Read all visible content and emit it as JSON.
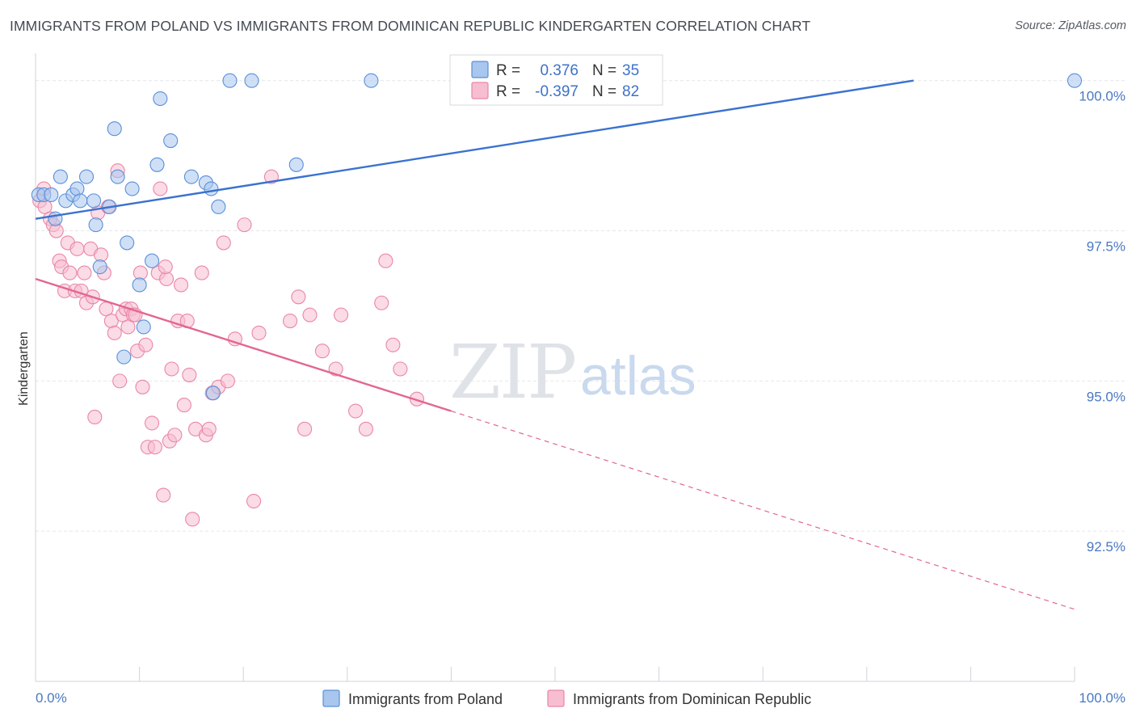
{
  "title": "IMMIGRANTS FROM POLAND VS IMMIGRANTS FROM DOMINICAN REPUBLIC KINDERGARTEN CORRELATION CHART",
  "source": "Source: ZipAtlas.com",
  "watermark": {
    "zip": "ZIP",
    "atlas": "atlas"
  },
  "colors": {
    "poland_fill": "#a8c6ee",
    "poland_stroke": "#5b8fd8",
    "poland_line": "#3a72d0",
    "dominican_fill": "#f7bdd0",
    "dominican_stroke": "#e987a8",
    "dominican_line": "#e2678f",
    "tick_label": "#4a78c2",
    "grid": "#e3e6ea"
  },
  "legend": {
    "r_label": "R =",
    "n_label": "N =",
    "rows": [
      {
        "r": "0.376",
        "n": "35"
      },
      {
        "r": "-0.397",
        "n": "82"
      }
    ]
  },
  "chart_data": {
    "type": "scatter",
    "title": "IMMIGRANTS FROM POLAND VS IMMIGRANTS FROM DOMINICAN REPUBLIC KINDERGARTEN CORRELATION CHART",
    "xlabel": "",
    "ylabel": "Kindergarten",
    "xlim": [
      0,
      100
    ],
    "ylim": [
      90.0,
      100.4
    ],
    "x_tick_labels": [
      "0.0%",
      "100.0%"
    ],
    "y_ticks": [
      {
        "value": 100.0,
        "label": "100.0%"
      },
      {
        "value": 97.5,
        "label": "97.5%"
      },
      {
        "value": 95.0,
        "label": "95.0%"
      },
      {
        "value": 92.5,
        "label": "92.5%"
      }
    ],
    "grid": true,
    "legend_position": "top-center",
    "series": [
      {
        "name": "Immigrants from Poland",
        "color": "#a8c6ee",
        "trend": {
          "x": [
            0,
            84.5
          ],
          "y": [
            97.7,
            100.0
          ],
          "dashed_extension": false
        },
        "points": [
          [
            0.3,
            98.1
          ],
          [
            0.8,
            98.1
          ],
          [
            1.5,
            98.1
          ],
          [
            1.9,
            97.7
          ],
          [
            2.4,
            98.4
          ],
          [
            2.9,
            98.0
          ],
          [
            3.6,
            98.1
          ],
          [
            4.0,
            98.2
          ],
          [
            4.3,
            98.0
          ],
          [
            4.9,
            98.4
          ],
          [
            5.6,
            98.0
          ],
          [
            5.8,
            97.6
          ],
          [
            6.2,
            96.9
          ],
          [
            7.1,
            97.9
          ],
          [
            7.6,
            99.2
          ],
          [
            7.9,
            98.4
          ],
          [
            8.5,
            95.4
          ],
          [
            8.8,
            97.3
          ],
          [
            9.3,
            98.2
          ],
          [
            10.0,
            96.6
          ],
          [
            10.4,
            95.9
          ],
          [
            11.2,
            97.0
          ],
          [
            11.7,
            98.6
          ],
          [
            12.0,
            99.7
          ],
          [
            13.0,
            99.0
          ],
          [
            15.0,
            98.4
          ],
          [
            16.4,
            98.3
          ],
          [
            16.9,
            98.2
          ],
          [
            17.1,
            94.8
          ],
          [
            17.6,
            97.9
          ],
          [
            18.7,
            100.0
          ],
          [
            20.8,
            100.0
          ],
          [
            25.1,
            98.6
          ],
          [
            32.3,
            100.0
          ],
          [
            100.0,
            100.0
          ]
        ]
      },
      {
        "name": "Immigrants from Dominican Republic",
        "color": "#f7bdd0",
        "trend": {
          "x": [
            0,
            40.0
          ],
          "y": [
            96.7,
            94.5
          ],
          "dashed_to": [
            100,
            91.2
          ]
        },
        "points": [
          [
            0.4,
            98.0
          ],
          [
            0.9,
            97.9
          ],
          [
            1.4,
            97.7
          ],
          [
            1.7,
            97.6
          ],
          [
            2.0,
            97.5
          ],
          [
            2.3,
            97.0
          ],
          [
            2.5,
            96.9
          ],
          [
            2.8,
            96.5
          ],
          [
            3.1,
            97.3
          ],
          [
            3.3,
            96.8
          ],
          [
            3.8,
            96.5
          ],
          [
            4.0,
            97.2
          ],
          [
            4.4,
            96.5
          ],
          [
            4.7,
            96.8
          ],
          [
            4.9,
            96.3
          ],
          [
            5.3,
            97.2
          ],
          [
            5.5,
            96.4
          ],
          [
            5.7,
            94.4
          ],
          [
            6.0,
            97.8
          ],
          [
            6.3,
            97.1
          ],
          [
            6.6,
            96.8
          ],
          [
            6.8,
            96.2
          ],
          [
            7.0,
            97.9
          ],
          [
            7.3,
            96.0
          ],
          [
            7.6,
            95.8
          ],
          [
            7.9,
            98.5
          ],
          [
            8.1,
            95.0
          ],
          [
            8.4,
            96.1
          ],
          [
            8.7,
            96.2
          ],
          [
            8.9,
            95.9
          ],
          [
            9.2,
            96.2
          ],
          [
            9.4,
            96.1
          ],
          [
            9.8,
            95.5
          ],
          [
            10.1,
            96.8
          ],
          [
            10.3,
            94.9
          ],
          [
            10.6,
            95.6
          ],
          [
            10.8,
            93.9
          ],
          [
            11.2,
            94.3
          ],
          [
            11.5,
            93.9
          ],
          [
            11.8,
            96.8
          ],
          [
            12.0,
            98.2
          ],
          [
            12.3,
            93.1
          ],
          [
            12.6,
            96.7
          ],
          [
            12.9,
            94.0
          ],
          [
            13.1,
            95.2
          ],
          [
            13.4,
            94.1
          ],
          [
            13.7,
            96.0
          ],
          [
            14.0,
            96.6
          ],
          [
            14.3,
            94.6
          ],
          [
            14.6,
            96.0
          ],
          [
            14.8,
            95.1
          ],
          [
            15.1,
            92.7
          ],
          [
            15.4,
            94.2
          ],
          [
            16.0,
            96.8
          ],
          [
            16.4,
            94.1
          ],
          [
            16.7,
            94.2
          ],
          [
            17.0,
            94.8
          ],
          [
            17.6,
            94.9
          ],
          [
            18.1,
            97.3
          ],
          [
            18.5,
            95.0
          ],
          [
            19.2,
            95.7
          ],
          [
            20.1,
            97.6
          ],
          [
            21.0,
            93.0
          ],
          [
            21.5,
            95.8
          ],
          [
            22.7,
            98.4
          ],
          [
            24.5,
            96.0
          ],
          [
            25.3,
            96.4
          ],
          [
            25.9,
            94.2
          ],
          [
            26.4,
            96.1
          ],
          [
            27.6,
            95.5
          ],
          [
            28.9,
            95.2
          ],
          [
            29.4,
            96.1
          ],
          [
            30.8,
            94.5
          ],
          [
            31.8,
            94.2
          ],
          [
            33.3,
            96.3
          ],
          [
            33.7,
            97.0
          ],
          [
            34.4,
            95.6
          ],
          [
            35.1,
            95.2
          ],
          [
            36.7,
            94.7
          ],
          [
            9.6,
            96.1
          ],
          [
            12.5,
            96.9
          ],
          [
            0.8,
            98.2
          ]
        ]
      }
    ]
  }
}
